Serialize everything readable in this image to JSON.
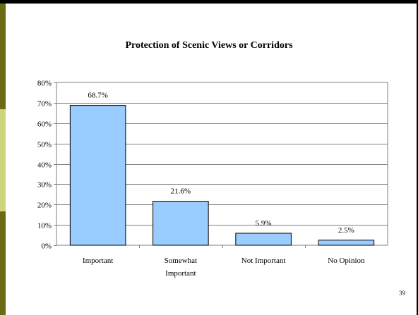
{
  "slide": {
    "page_number": "39"
  },
  "chart_data": {
    "type": "bar",
    "title": "Protection of Scenic Views or Corridors",
    "xlabel": "",
    "ylabel": "",
    "categories": [
      [
        "Important"
      ],
      [
        "Somewhat",
        "Important"
      ],
      [
        "Not Important"
      ],
      [
        "No Opinion"
      ]
    ],
    "values": [
      68.7,
      21.6,
      5.9,
      2.5
    ],
    "value_labels": [
      "68.7%",
      "21.6%",
      "5.9%",
      "2.5%"
    ],
    "ylim": [
      0,
      80
    ],
    "yticks": [
      0,
      10,
      20,
      30,
      40,
      50,
      60,
      70,
      80
    ],
    "ytick_labels": [
      "0%",
      "10%",
      "20%",
      "30%",
      "40%",
      "50%",
      "60%",
      "70%",
      "80%"
    ],
    "grid": true,
    "legend": "none",
    "colors": {
      "bar_fill": "#99ccff",
      "bar_stroke": "#000000",
      "grid": "#7f7f7f",
      "axis": "#7f7f7f"
    }
  }
}
